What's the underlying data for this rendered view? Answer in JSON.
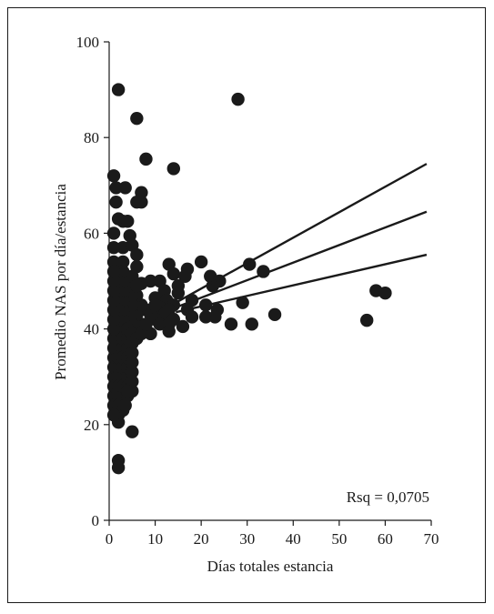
{
  "chart_data": {
    "type": "scatter",
    "title": "",
    "xlabel": "Días totales estancia",
    "ylabel": "Promedio NAS por día/estancia",
    "xlim": [
      0,
      70
    ],
    "ylim": [
      0,
      100
    ],
    "xticks": [
      0,
      10,
      20,
      30,
      40,
      50,
      60,
      70
    ],
    "yticks": [
      0,
      20,
      40,
      60,
      80,
      100
    ],
    "grid": false,
    "annotation": "Rsq = 0,0705",
    "colors": {
      "points": "#1a1a1a",
      "lines": "#1a1a1a",
      "axis": "#1a1a1a"
    },
    "points": [
      [
        2,
        90
      ],
      [
        6,
        84
      ],
      [
        28,
        88
      ],
      [
        8,
        75.5
      ],
      [
        14,
        73.5
      ],
      [
        1,
        72
      ],
      [
        1.5,
        69.5
      ],
      [
        3.5,
        69.5
      ],
      [
        1.5,
        66.5
      ],
      [
        6,
        66.5
      ],
      [
        7,
        66.5
      ],
      [
        7,
        68.5
      ],
      [
        2,
        63
      ],
      [
        3,
        62.5
      ],
      [
        4,
        62.5
      ],
      [
        1,
        60
      ],
      [
        4.5,
        59.5
      ],
      [
        1,
        57
      ],
      [
        3,
        57
      ],
      [
        5,
        57.5
      ],
      [
        6,
        55.5
      ],
      [
        1,
        54
      ],
      [
        3,
        54
      ],
      [
        6,
        53
      ],
      [
        13,
        53.5
      ],
      [
        17,
        52.5
      ],
      [
        20,
        54
      ],
      [
        30.5,
        53.5
      ],
      [
        33.5,
        52
      ],
      [
        14,
        51.5
      ],
      [
        16.5,
        51
      ],
      [
        22,
        51
      ],
      [
        24,
        50
      ],
      [
        9,
        50
      ],
      [
        11,
        50
      ],
      [
        7,
        49.5
      ],
      [
        15,
        49
      ],
      [
        22.5,
        49
      ],
      [
        12,
        48
      ],
      [
        15,
        47.5
      ],
      [
        10,
        46.5
      ],
      [
        12.5,
        46
      ],
      [
        18,
        46
      ],
      [
        21,
        45
      ],
      [
        29,
        45.5
      ],
      [
        14,
        45
      ],
      [
        11,
        44.5
      ],
      [
        13,
        44
      ],
      [
        8,
        44
      ],
      [
        17,
        44
      ],
      [
        23.5,
        44
      ],
      [
        9,
        43
      ],
      [
        12,
        43
      ],
      [
        36,
        43
      ],
      [
        10,
        42
      ],
      [
        14,
        42
      ],
      [
        18,
        42.5
      ],
      [
        21,
        42.5
      ],
      [
        23,
        42.5
      ],
      [
        11,
        41
      ],
      [
        13,
        41
      ],
      [
        26.5,
        41
      ],
      [
        31,
        41
      ],
      [
        56,
        41.8
      ],
      [
        58,
        48
      ],
      [
        60,
        47.5
      ],
      [
        8,
        40
      ],
      [
        13,
        39.5
      ],
      [
        16,
        40.5
      ],
      [
        9,
        39
      ],
      [
        6,
        40
      ],
      [
        7,
        41
      ],
      [
        6,
        43
      ],
      [
        7,
        45
      ],
      [
        6,
        47
      ],
      [
        4,
        42
      ],
      [
        4,
        44
      ],
      [
        4,
        46
      ],
      [
        4,
        48
      ],
      [
        4,
        50
      ],
      [
        5,
        41
      ],
      [
        5,
        43
      ],
      [
        5,
        45
      ],
      [
        5,
        47
      ],
      [
        5,
        49
      ],
      [
        5,
        51
      ],
      [
        3,
        40
      ],
      [
        3,
        42
      ],
      [
        3,
        44
      ],
      [
        3,
        46
      ],
      [
        3,
        48
      ],
      [
        3,
        50
      ],
      [
        3,
        52
      ],
      [
        2,
        36
      ],
      [
        2,
        38
      ],
      [
        2,
        40
      ],
      [
        2,
        42
      ],
      [
        2,
        44
      ],
      [
        2,
        46
      ],
      [
        2,
        48
      ],
      [
        2,
        50
      ],
      [
        2,
        52
      ],
      [
        1,
        34
      ],
      [
        1,
        36
      ],
      [
        1,
        38
      ],
      [
        1,
        40
      ],
      [
        1,
        42
      ],
      [
        1,
        44
      ],
      [
        1,
        46
      ],
      [
        1,
        48
      ],
      [
        1,
        50
      ],
      [
        1,
        52
      ],
      [
        3,
        36
      ],
      [
        3,
        38
      ],
      [
        4,
        36
      ],
      [
        4,
        38
      ],
      [
        4,
        40
      ],
      [
        5,
        37
      ],
      [
        5,
        39
      ],
      [
        1,
        30
      ],
      [
        1,
        32
      ],
      [
        2,
        30
      ],
      [
        2,
        32
      ],
      [
        2,
        34
      ],
      [
        3,
        30
      ],
      [
        3,
        32
      ],
      [
        3,
        34
      ],
      [
        4,
        30
      ],
      [
        4,
        32
      ],
      [
        4,
        34
      ],
      [
        5,
        31
      ],
      [
        5,
        33
      ],
      [
        5,
        35
      ],
      [
        1,
        26
      ],
      [
        1,
        28
      ],
      [
        2,
        26
      ],
      [
        2,
        28
      ],
      [
        3,
        26
      ],
      [
        3,
        28
      ],
      [
        4,
        26
      ],
      [
        4,
        28
      ],
      [
        5,
        29
      ],
      [
        5,
        27
      ],
      [
        1,
        24
      ],
      [
        2,
        24
      ],
      [
        2,
        22
      ],
      [
        3,
        23
      ],
      [
        3.5,
        24
      ],
      [
        4,
        27
      ],
      [
        2,
        20.5
      ],
      [
        5,
        18.5
      ],
      [
        2,
        12.5
      ],
      [
        2,
        11
      ],
      [
        1,
        22
      ],
      [
        6,
        38
      ],
      [
        7,
        39
      ],
      [
        8,
        41
      ],
      [
        10,
        45
      ],
      [
        6,
        49
      ]
    ],
    "fit_lines": [
      {
        "name": "upper",
        "x": [
          14.5,
          69
        ],
        "y": [
          45.5,
          74.5
        ]
      },
      {
        "name": "fit",
        "x": [
          14.5,
          69
        ],
        "y": [
          44.5,
          64.5
        ]
      },
      {
        "name": "lower",
        "x": [
          14.5,
          69
        ],
        "y": [
          43.5,
          55.5
        ]
      }
    ]
  }
}
